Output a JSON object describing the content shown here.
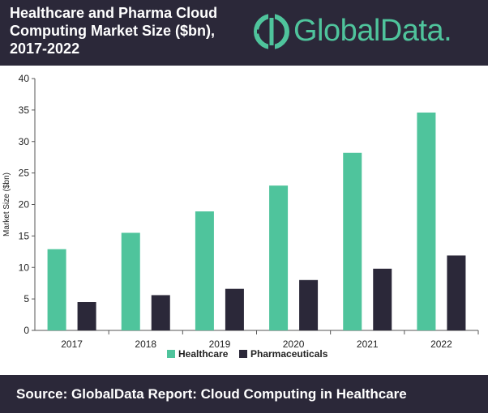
{
  "header": {
    "title_lines": [
      "Healthcare and Pharma Cloud",
      "Computing Market Size ($bn),",
      "2017-2022"
    ],
    "logo_text": "GlobalData."
  },
  "footer": {
    "source": "Source: GlobalData Report: Cloud Computing in Healthcare"
  },
  "colors": {
    "header_bg": "#2b2839",
    "healthcare": "#4fc49c",
    "pharmaceuticals": "#2b2839",
    "logo": "#4fc49c"
  },
  "chart_data": {
    "type": "bar",
    "title": "Healthcare and Pharma Cloud Computing Market Size ($bn), 2017-2022",
    "xlabel": "",
    "ylabel": "Market Size ($bn)",
    "categories": [
      "2017",
      "2018",
      "2019",
      "2020",
      "2021",
      "2022"
    ],
    "series": [
      {
        "name": "Healthcare",
        "values": [
          12.9,
          15.5,
          18.9,
          23.0,
          28.2,
          34.6
        ]
      },
      {
        "name": "Pharmaceuticals",
        "values": [
          4.5,
          5.6,
          6.6,
          8.0,
          9.8,
          11.9
        ]
      }
    ],
    "ylim": [
      0,
      40
    ],
    "yticks": [
      "0",
      "5",
      "10",
      "15",
      "20",
      "25",
      "30",
      "35",
      "40"
    ],
    "grid": false,
    "legend": "bottom"
  }
}
